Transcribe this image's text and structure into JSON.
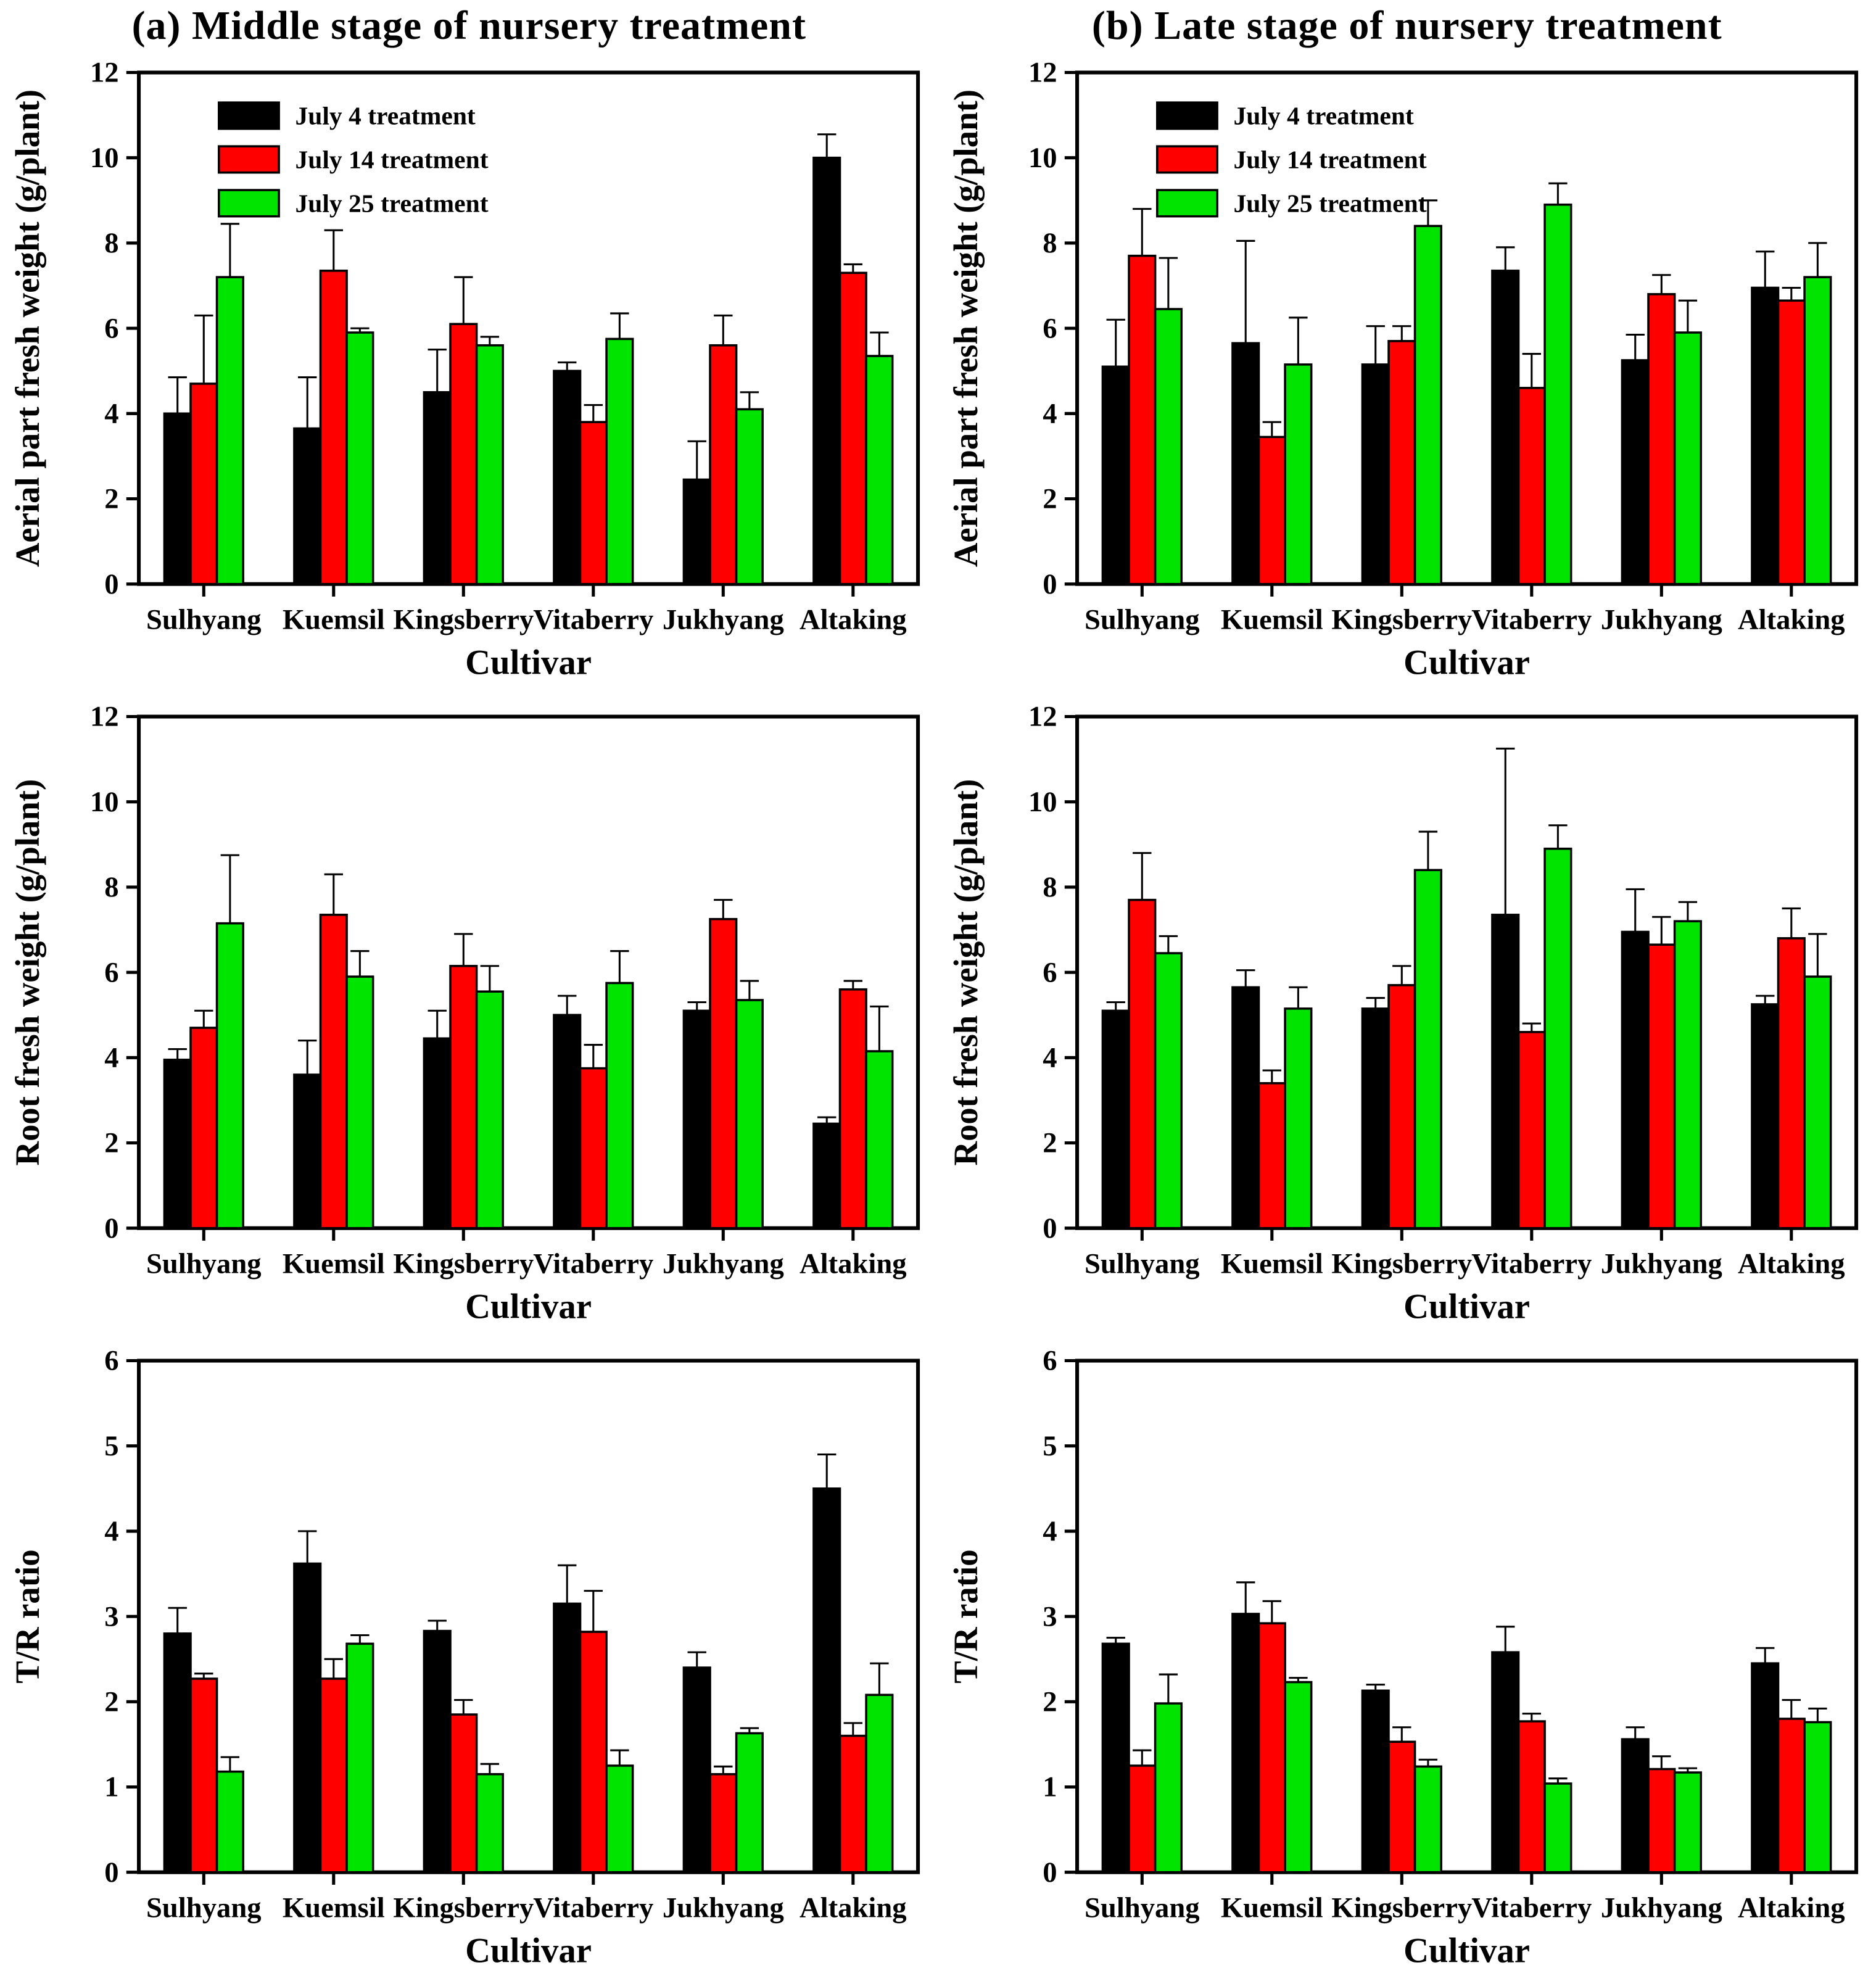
{
  "page": {
    "panel_a_title": "(a) Middle stage of nursery treatment",
    "panel_b_title": "(b) Late stage of nursery treatment"
  },
  "legend": {
    "entries": [
      {
        "label": "July 4 treatment",
        "color": "#000000"
      },
      {
        "label": "July 14 treatment",
        "color": "#FF0000"
      },
      {
        "label": "July 25 treatment",
        "color": "#00E400"
      }
    ]
  },
  "chart_data": [
    {
      "id": "aerial-middle",
      "type": "bar",
      "panel": "a",
      "ylabel": "Aerial part fresh weight (g/plant)",
      "xlabel": "Cultivar",
      "ylim": [
        0,
        12
      ],
      "ytick_step": 2,
      "grid": false,
      "show_legend": true,
      "legend_position": "upper-left",
      "categories": [
        "Sulhyang",
        "Kuemsil",
        "Kingsberry",
        "Vitaberry",
        "Jukhyang",
        "Altaking"
      ],
      "series": [
        {
          "name": "July 4 treatment",
          "color": "#000000",
          "values": [
            4.0,
            3.65,
            4.5,
            5.0,
            2.45,
            10.0
          ],
          "errors_up": [
            0.85,
            1.2,
            1.0,
            0.2,
            0.9,
            0.55
          ]
        },
        {
          "name": "July 14 treatment",
          "color": "#FF0000",
          "values": [
            4.7,
            7.35,
            6.1,
            3.8,
            5.6,
            7.3
          ],
          "errors_up": [
            1.6,
            0.95,
            1.1,
            0.4,
            0.7,
            0.2
          ]
        },
        {
          "name": "July 25 treatment",
          "color": "#00E400",
          "values": [
            7.2,
            5.9,
            5.6,
            5.75,
            4.1,
            5.35
          ],
          "errors_up": [
            1.25,
            0.1,
            0.2,
            0.6,
            0.4,
            0.55
          ]
        }
      ]
    },
    {
      "id": "aerial-late",
      "type": "bar",
      "panel": "b",
      "ylabel": "Aerial part fresh weight (g/plant)",
      "xlabel": "Cultivar",
      "ylim": [
        0,
        12
      ],
      "ytick_step": 2,
      "grid": false,
      "show_legend": true,
      "legend_position": "upper-left",
      "categories": [
        "Sulhyang",
        "Kuemsil",
        "Kingsberry",
        "Vitaberry",
        "Jukhyang",
        "Altaking"
      ],
      "series": [
        {
          "name": "July 4 treatment",
          "color": "#000000",
          "values": [
            5.1,
            5.65,
            5.15,
            7.35,
            5.25,
            6.95
          ],
          "errors_up": [
            1.1,
            2.4,
            0.9,
            0.55,
            0.6,
            0.85
          ]
        },
        {
          "name": "July 14 treatment",
          "color": "#FF0000",
          "values": [
            7.7,
            3.45,
            5.7,
            4.6,
            6.8,
            6.65
          ],
          "errors_up": [
            1.1,
            0.35,
            0.35,
            0.8,
            0.45,
            0.3
          ]
        },
        {
          "name": "July 25 treatment",
          "color": "#00E400",
          "values": [
            6.45,
            5.15,
            8.4,
            8.9,
            5.9,
            7.2
          ],
          "errors_up": [
            1.2,
            1.1,
            0.6,
            0.5,
            0.75,
            0.8
          ]
        }
      ]
    },
    {
      "id": "root-middle",
      "type": "bar",
      "panel": "a",
      "ylabel": "Root fresh weight (g/plant)",
      "xlabel": "Cultivar",
      "ylim": [
        0,
        12
      ],
      "ytick_step": 2,
      "grid": false,
      "show_legend": false,
      "legend_position": "none",
      "categories": [
        "Sulhyang",
        "Kuemsil",
        "Kingsberry",
        "Vitaberry",
        "Jukhyang",
        "Altaking"
      ],
      "series": [
        {
          "name": "July 4 treatment",
          "color": "#000000",
          "values": [
            3.95,
            3.6,
            4.45,
            5.0,
            5.1,
            2.45
          ],
          "errors_up": [
            0.25,
            0.8,
            0.65,
            0.45,
            0.2,
            0.15
          ]
        },
        {
          "name": "July 14 treatment",
          "color": "#FF0000",
          "values": [
            4.7,
            7.35,
            6.15,
            3.75,
            7.25,
            5.6
          ],
          "errors_up": [
            0.4,
            0.95,
            0.75,
            0.55,
            0.45,
            0.2
          ]
        },
        {
          "name": "July 25 treatment",
          "color": "#00E400",
          "values": [
            7.15,
            5.9,
            5.55,
            5.75,
            5.35,
            4.15
          ],
          "errors_up": [
            1.6,
            0.6,
            0.6,
            0.75,
            0.45,
            1.05
          ]
        }
      ]
    },
    {
      "id": "root-late",
      "type": "bar",
      "panel": "b",
      "ylabel": "Root fresh weight (g/plant)",
      "xlabel": "Cultivar",
      "ylim": [
        0,
        12
      ],
      "ytick_step": 2,
      "grid": false,
      "show_legend": false,
      "legend_position": "none",
      "categories": [
        "Sulhyang",
        "Kuemsil",
        "Kingsberry",
        "Vitaberry",
        "Jukhyang",
        "Altaking"
      ],
      "series": [
        {
          "name": "July 4 treatment",
          "color": "#000000",
          "values": [
            5.1,
            5.65,
            5.15,
            7.35,
            6.95,
            5.25
          ],
          "errors_up": [
            0.2,
            0.4,
            0.25,
            3.9,
            1.0,
            0.2
          ]
        },
        {
          "name": "July 14 treatment",
          "color": "#FF0000",
          "values": [
            7.7,
            3.4,
            5.7,
            4.6,
            6.65,
            6.8
          ],
          "errors_up": [
            1.1,
            0.3,
            0.45,
            0.2,
            0.65,
            0.7
          ]
        },
        {
          "name": "July 25 treatment",
          "color": "#00E400",
          "values": [
            6.45,
            5.15,
            8.4,
            8.9,
            7.2,
            5.9
          ],
          "errors_up": [
            0.4,
            0.5,
            0.9,
            0.55,
            0.45,
            1.0
          ]
        }
      ]
    },
    {
      "id": "tr-ratio-middle",
      "type": "bar",
      "panel": "a",
      "ylabel": "T/R ratio",
      "xlabel": "Cultivar",
      "ylim": [
        0,
        6
      ],
      "ytick_step": 1,
      "grid": false,
      "show_legend": false,
      "legend_position": "none",
      "categories": [
        "Sulhyang",
        "Kuemsil",
        "Kingsberry",
        "Vitaberry",
        "Jukhyang",
        "Altaking"
      ],
      "series": [
        {
          "name": "July 4 treatment",
          "color": "#000000",
          "values": [
            2.8,
            3.62,
            2.83,
            3.15,
            2.4,
            4.5
          ],
          "errors_up": [
            0.3,
            0.38,
            0.12,
            0.45,
            0.18,
            0.4
          ]
        },
        {
          "name": "July 14 treatment",
          "color": "#FF0000",
          "values": [
            2.27,
            2.27,
            1.85,
            2.82,
            1.15,
            1.6
          ],
          "errors_up": [
            0.06,
            0.23,
            0.17,
            0.48,
            0.09,
            0.15
          ]
        },
        {
          "name": "July 25 treatment",
          "color": "#00E400",
          "values": [
            1.18,
            2.68,
            1.15,
            1.25,
            1.63,
            2.08
          ],
          "errors_up": [
            0.17,
            0.1,
            0.12,
            0.18,
            0.06,
            0.37
          ]
        }
      ]
    },
    {
      "id": "tr-ratio-late",
      "type": "bar",
      "panel": "b",
      "ylabel": "T/R ratio",
      "xlabel": "Cultivar",
      "ylim": [
        0,
        6
      ],
      "ytick_step": 1,
      "grid": false,
      "show_legend": false,
      "legend_position": "none",
      "categories": [
        "Sulhyang",
        "Kuemsil",
        "Kingsberry",
        "Vitaberry",
        "Jukhyang",
        "Altaking"
      ],
      "series": [
        {
          "name": "July 4 treatment",
          "color": "#000000",
          "values": [
            2.68,
            3.03,
            2.13,
            2.58,
            1.56,
            2.45
          ],
          "errors_up": [
            0.07,
            0.37,
            0.07,
            0.3,
            0.14,
            0.18
          ]
        },
        {
          "name": "July 14 treatment",
          "color": "#FF0000",
          "values": [
            1.25,
            2.92,
            1.53,
            1.77,
            1.21,
            1.8
          ],
          "errors_up": [
            0.18,
            0.26,
            0.17,
            0.09,
            0.15,
            0.22
          ]
        },
        {
          "name": "July 25 treatment",
          "color": "#00E400",
          "values": [
            1.98,
            2.23,
            1.24,
            1.04,
            1.17,
            1.76
          ],
          "errors_up": [
            0.34,
            0.05,
            0.08,
            0.06,
            0.05,
            0.16
          ]
        }
      ]
    }
  ]
}
